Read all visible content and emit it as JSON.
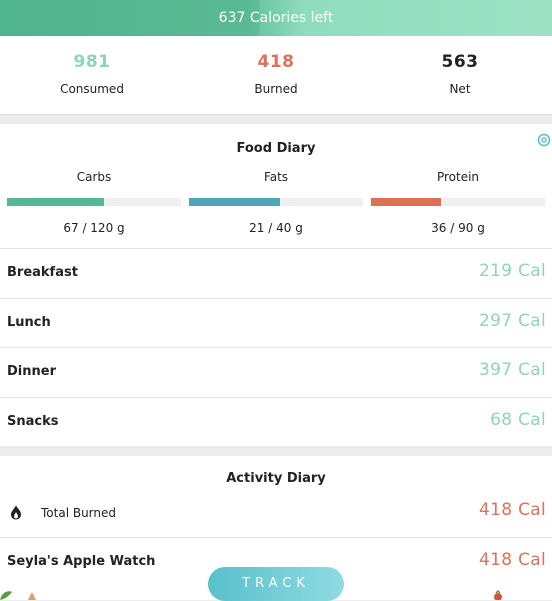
{
  "banner": {
    "text": "637 Calories left",
    "progress": 0.47
  },
  "summary": [
    {
      "value": "981",
      "label": "Consumed",
      "color": "#8fd4b7"
    },
    {
      "value": "418",
      "label": "Burned",
      "color": "#e0705a"
    },
    {
      "value": "563",
      "label": "Net",
      "color": "#222222"
    }
  ],
  "food_diary": {
    "title": "Food Diary",
    "settings_icon": "gear-icon",
    "macros": [
      {
        "name": "Carbs",
        "amount": "67 / 120 g",
        "fraction": 0.558,
        "color": "#55b892"
      },
      {
        "name": "Fats",
        "amount": "21 / 40 g",
        "fraction": 0.525,
        "color": "#4ea6b8"
      },
      {
        "name": "Protein",
        "amount": "36 / 90 g",
        "fraction": 0.4,
        "color": "#e07055"
      }
    ],
    "meals": [
      {
        "name": "Breakfast",
        "calories": "219 Cal"
      },
      {
        "name": "Lunch",
        "calories": "297 Cal"
      },
      {
        "name": "Dinner",
        "calories": "397 Cal"
      },
      {
        "name": "Snacks",
        "calories": "68 Cal"
      }
    ]
  },
  "activity_diary": {
    "title": "Activity Diary",
    "total_burned": {
      "icon": "flame-icon",
      "label": "Total Burned",
      "calories": "418 Cal"
    },
    "sources": [
      {
        "name": "Seyla's Apple Watch",
        "calories": "418 Cal"
      }
    ]
  },
  "track_button": {
    "label": "TRACK"
  }
}
